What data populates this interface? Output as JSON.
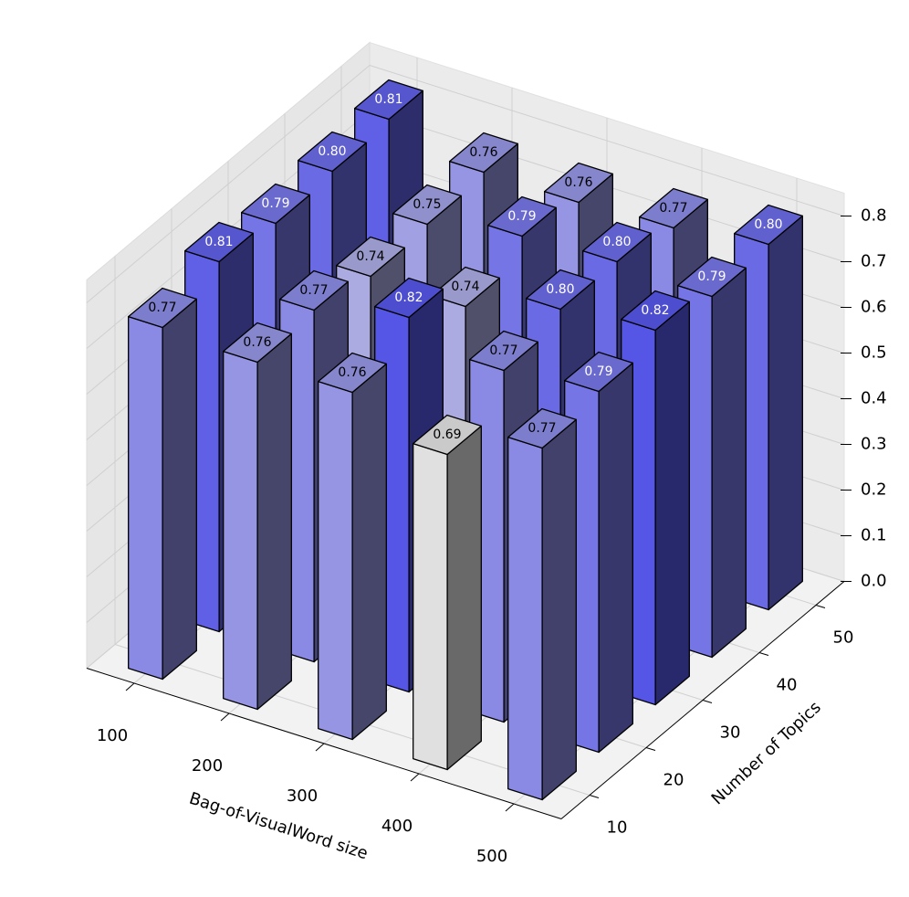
{
  "chart_data": {
    "type": "bar3d",
    "xlabel": "Bag-of-VisualWord size",
    "ylabel": "Number of Topics",
    "x": [
      100,
      200,
      300,
      400,
      500
    ],
    "y": [
      10,
      20,
      30,
      40,
      50
    ],
    "values": [
      [
        0.77,
        0.76,
        0.76,
        0.69,
        0.77
      ],
      [
        0.81,
        0.77,
        0.82,
        0.77,
        0.79
      ],
      [
        0.79,
        0.74,
        0.74,
        0.8,
        0.82
      ],
      [
        0.8,
        0.75,
        0.79,
        0.8,
        0.79
      ],
      [
        0.81,
        0.76,
        0.76,
        0.77,
        0.8
      ]
    ],
    "value_labels": [
      [
        "0.77",
        "0.76",
        "0.76",
        "0.69",
        "0.77"
      ],
      [
        "0.81",
        "0.77",
        "0.82",
        "0.77",
        "0.79"
      ],
      [
        "0.79",
        "0.74",
        "0.74",
        "0.80",
        "0.82"
      ],
      [
        "0.80",
        "0.75",
        "0.79",
        "0.80",
        "0.79"
      ],
      [
        "0.81",
        "0.76",
        "0.76",
        "0.77",
        "0.80"
      ]
    ],
    "xlim": [
      50,
      550
    ],
    "ylim": [
      5,
      55
    ],
    "zlim": [
      0,
      0.85
    ],
    "xticks": [
      100,
      200,
      300,
      400,
      500
    ],
    "yticks": [
      10,
      20,
      30,
      40,
      50
    ],
    "zticks": [
      {
        "value": 0,
        "label": "0.0"
      },
      0.1,
      0.2,
      0.3,
      0.4,
      0.5,
      0.6,
      0.7,
      0.8
    ],
    "colormap": [
      "#e0e0e0",
      "#5555e6"
    ],
    "grid": true
  }
}
